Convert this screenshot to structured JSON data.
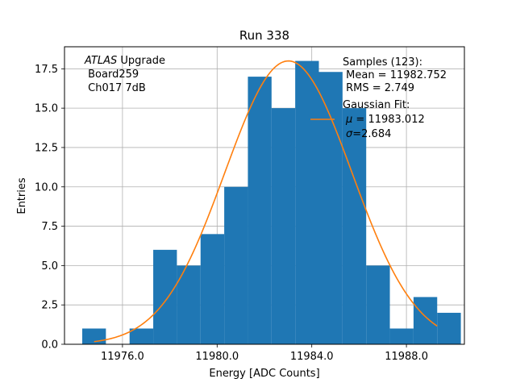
{
  "chart_data": {
    "type": "bar",
    "title": "Run 338",
    "xlabel": "Energy [ADC Counts]",
    "ylabel": "Entries",
    "xlim": [
      11973.55,
      11990.45
    ],
    "ylim": [
      0,
      18.9
    ],
    "xticks": [
      11976,
      11980,
      11984,
      11988
    ],
    "xtick_labels": [
      "11976.0",
      "11980.0",
      "11984.0",
      "11988.0"
    ],
    "yticks": [
      0,
      2.5,
      5,
      7.5,
      10,
      12.5,
      15,
      17.5
    ],
    "ytick_labels": [
      "0.0",
      "2.5",
      "5.0",
      "7.5",
      "10.0",
      "12.5",
      "15.0",
      "17.5"
    ],
    "grid": true,
    "bar_color": "#1f77b4",
    "fit_color": "#ff7f0e",
    "bins": [
      {
        "x0": 11974.3,
        "x1": 11975.3,
        "count": 1
      },
      {
        "x0": 11975.3,
        "x1": 11976.3,
        "count": 0
      },
      {
        "x0": 11976.3,
        "x1": 11977.3,
        "count": 1
      },
      {
        "x0": 11977.3,
        "x1": 11978.3,
        "count": 6
      },
      {
        "x0": 11978.3,
        "x1": 11979.3,
        "count": 5
      },
      {
        "x0": 11979.3,
        "x1": 11980.3,
        "count": 7
      },
      {
        "x0": 11980.3,
        "x1": 11981.3,
        "count": 10
      },
      {
        "x0": 11981.3,
        "x1": 11982.3,
        "count": 17
      },
      {
        "x0": 11982.3,
        "x1": 11983.3,
        "count": 15
      },
      {
        "x0": 11983.3,
        "x1": 11984.3,
        "count": 18
      },
      {
        "x0": 11984.3,
        "x1": 11985.3,
        "count": 17.3
      },
      {
        "x0": 11985.3,
        "x1": 11986.3,
        "count": 15
      },
      {
        "x0": 11986.3,
        "x1": 11987.3,
        "count": 5
      },
      {
        "x0": 11987.3,
        "x1": 11988.3,
        "count": 1
      },
      {
        "x0": 11988.3,
        "x1": 11989.3,
        "count": 3
      },
      {
        "x0": 11989.3,
        "x1": 11990.3,
        "count": 2
      }
    ],
    "fit": {
      "mu": 11983.012,
      "sigma": 2.684,
      "amplitude": 18,
      "x_start": 11974.8,
      "x_end": 11989.3
    },
    "annotations": {
      "atlas_italic": "ATLAS",
      "atlas_rest": " Upgrade",
      "board": " Board259",
      "channel": " Ch017 7dB"
    },
    "legend": {
      "samples_title": "Samples (123):",
      "mean": " Mean = 11982.752",
      "rms": " RMS = 2.749",
      "fit_title": "Gaussian Fit:",
      "mu_symbol": "μ",
      "mu_value": " = 11983.012",
      "sigma_symbol": "σ",
      "sigma_value": "=2.684"
    }
  }
}
